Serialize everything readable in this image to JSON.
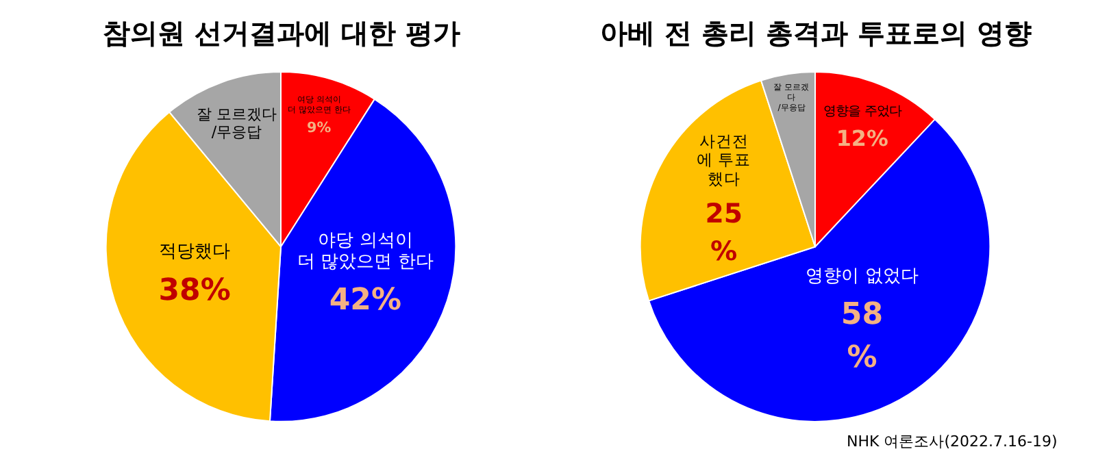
{
  "chart_data": [
    {
      "type": "pie",
      "title": "참의원 선거결과에 대한 평가",
      "categories": [
        "여당 의석이\n더 많았으면 한다",
        "야당 의석이\n더 많았으면 한다",
        "적당했다",
        "잘 모르겠다\n/무응답"
      ],
      "values": [
        9,
        42,
        38,
        11
      ],
      "colors": [
        "#ff0000",
        "#0000ff",
        "#ffc000",
        "#a6a6a6"
      ],
      "value_labels": [
        "9%",
        "42%",
        "38%",
        null
      ],
      "legend": false
    },
    {
      "type": "pie",
      "title": "아베 전 총리 총격과 투표로의 영향",
      "categories": [
        "영향을 주었다",
        "영향이 없었다",
        "사건전\n에 투표\n했다",
        "잘 모르겠\n다\n/무응답"
      ],
      "values": [
        12,
        58,
        25,
        5
      ],
      "colors": [
        "#ff0000",
        "#0000ff",
        "#ffc000",
        "#a6a6a6"
      ],
      "value_labels": [
        "12%",
        "58\n%",
        "25\n%",
        null
      ],
      "legend": false,
      "annotations": [
        "NHK 여론조사(2022.7.16-19)"
      ]
    }
  ]
}
